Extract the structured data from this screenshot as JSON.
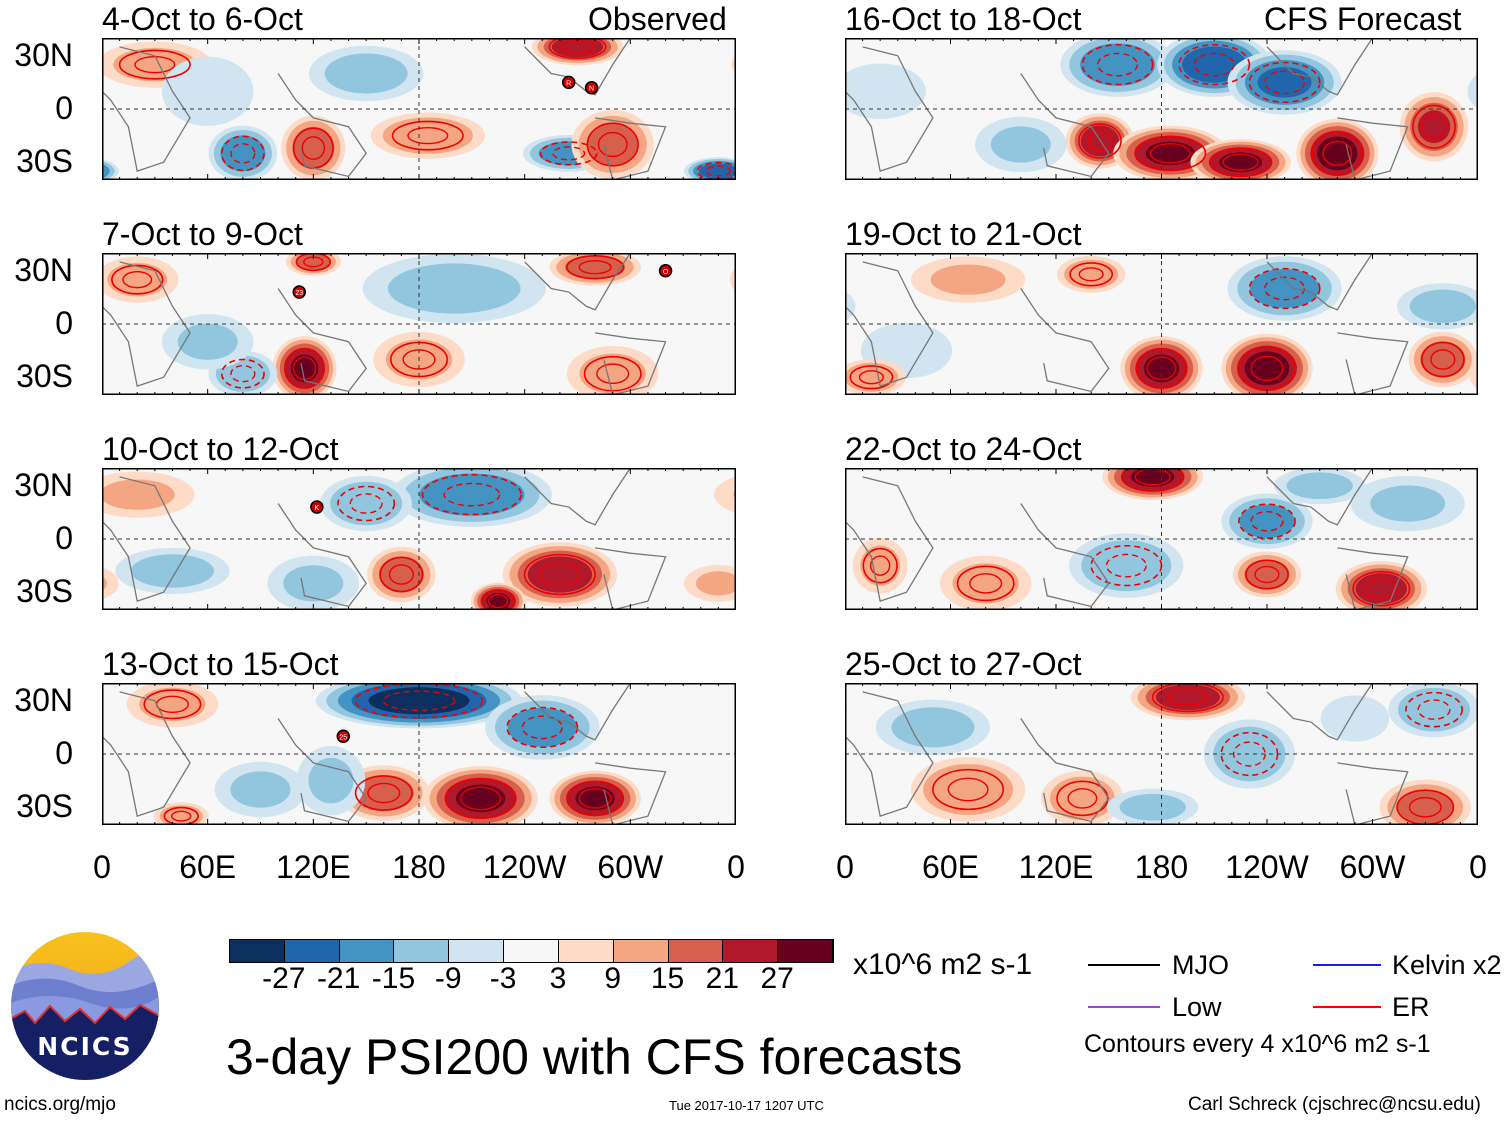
{
  "title": "3-day PSI200 with CFS forecasts",
  "left_column_label": "Observed",
  "right_column_label": "CFS Forecast",
  "lat_labels": [
    "30N",
    "0",
    "30S"
  ],
  "lon_labels": [
    "0",
    "60E",
    "120E",
    "180",
    "120W",
    "60W",
    "0"
  ],
  "panels": [
    {
      "label": "4-Oct to 6-Oct",
      "column": "left",
      "features": [
        [
          30,
          25,
          12,
          25,
          10
        ],
        [
          80,
          -25,
          -20,
          15,
          12
        ],
        [
          120,
          -22,
          20,
          14,
          14
        ],
        [
          150,
          20,
          -12,
          25,
          12
        ],
        [
          185,
          -15,
          15,
          25,
          10
        ],
        [
          265,
          -25,
          -20,
          20,
          8
        ],
        [
          290,
          -20,
          18,
          18,
          15
        ],
        [
          270,
          35,
          25,
          20,
          8
        ],
        [
          350,
          -35,
          -25,
          15,
          6
        ],
        [
          60,
          10,
          -8,
          20,
          15
        ]
      ],
      "storms": [
        [
          265,
          15,
          "R"
        ],
        [
          278,
          12,
          "N"
        ]
      ]
    },
    {
      "label": "7-Oct to 9-Oct",
      "column": "left",
      "features": [
        [
          115,
          -25,
          28,
          14,
          14
        ],
        [
          80,
          -28,
          -15,
          15,
          10
        ],
        [
          200,
          20,
          -12,
          40,
          15
        ],
        [
          280,
          32,
          20,
          20,
          8
        ],
        [
          180,
          -20,
          12,
          20,
          12
        ],
        [
          60,
          -10,
          -10,
          20,
          12
        ],
        [
          290,
          -28,
          12,
          20,
          12
        ],
        [
          120,
          35,
          18,
          12,
          6
        ],
        [
          20,
          25,
          12,
          18,
          10
        ]
      ],
      "storms": [
        [
          112,
          18,
          "23"
        ],
        [
          320,
          30,
          "O"
        ]
      ]
    },
    {
      "label": "10-Oct to 12-Oct",
      "column": "left",
      "features": [
        [
          210,
          25,
          -20,
          35,
          14
        ],
        [
          150,
          20,
          -15,
          20,
          12
        ],
        [
          260,
          -20,
          25,
          25,
          14
        ],
        [
          225,
          -35,
          28,
          12,
          8
        ],
        [
          170,
          -20,
          20,
          15,
          12
        ],
        [
          40,
          -18,
          -12,
          25,
          10
        ],
        [
          20,
          25,
          10,
          25,
          10
        ],
        [
          350,
          -25,
          10,
          15,
          8
        ],
        [
          120,
          -25,
          -10,
          20,
          12
        ]
      ],
      "storms": [
        [
          122,
          18,
          "K"
        ]
      ]
    },
    {
      "label": "13-Oct to 15-Oct",
      "column": "left",
      "features": [
        [
          180,
          30,
          -30,
          45,
          12
        ],
        [
          250,
          15,
          -18,
          25,
          14
        ],
        [
          215,
          -25,
          28,
          25,
          14
        ],
        [
          280,
          -25,
          28,
          20,
          12
        ],
        [
          160,
          -22,
          20,
          20,
          12
        ],
        [
          40,
          28,
          12,
          20,
          10
        ],
        [
          45,
          -35,
          15,
          12,
          6
        ],
        [
          90,
          -20,
          -10,
          20,
          12
        ],
        [
          130,
          -15,
          -10,
          15,
          15
        ]
      ],
      "storms": [
        [
          137,
          10,
          "25"
        ]
      ]
    },
    {
      "label": "16-Oct to 18-Oct",
      "column": "right",
      "features": [
        [
          155,
          25,
          -20,
          25,
          14
        ],
        [
          210,
          25,
          -25,
          25,
          14
        ],
        [
          250,
          15,
          -22,
          25,
          14
        ],
        [
          145,
          -18,
          25,
          15,
          12
        ],
        [
          185,
          -25,
          28,
          25,
          12
        ],
        [
          225,
          -30,
          28,
          22,
          10
        ],
        [
          280,
          -25,
          30,
          18,
          15
        ],
        [
          335,
          -10,
          22,
          15,
          15
        ],
        [
          20,
          10,
          -8,
          20,
          12
        ],
        [
          100,
          -20,
          -10,
          20,
          12
        ]
      ],
      "storms": []
    },
    {
      "label": "19-Oct to 21-Oct",
      "column": "right",
      "features": [
        [
          180,
          -25,
          28,
          18,
          14
        ],
        [
          240,
          -25,
          30,
          20,
          15
        ],
        [
          250,
          20,
          -18,
          25,
          14
        ],
        [
          70,
          25,
          10,
          25,
          10
        ],
        [
          140,
          28,
          15,
          15,
          8
        ],
        [
          340,
          10,
          -12,
          20,
          10
        ],
        [
          340,
          -20,
          20,
          15,
          12
        ],
        [
          35,
          -15,
          -9,
          20,
          12
        ],
        [
          15,
          -30,
          15,
          15,
          8
        ]
      ],
      "storms": []
    },
    {
      "label": "22-Oct to 24-Oct",
      "column": "right",
      "features": [
        [
          175,
          35,
          28,
          22,
          10
        ],
        [
          240,
          10,
          -18,
          20,
          12
        ],
        [
          160,
          -15,
          -15,
          25,
          14
        ],
        [
          80,
          -25,
          12,
          20,
          12
        ],
        [
          240,
          -20,
          20,
          15,
          10
        ],
        [
          305,
          -28,
          25,
          20,
          12
        ],
        [
          320,
          20,
          -10,
          25,
          12
        ],
        [
          20,
          -15,
          12,
          12,
          12
        ],
        [
          270,
          30,
          -12,
          20,
          8
        ]
      ],
      "storms": []
    },
    {
      "label": "25-Oct to 27-Oct",
      "column": "right",
      "features": [
        [
          195,
          32,
          25,
          25,
          10
        ],
        [
          70,
          -20,
          15,
          25,
          14
        ],
        [
          135,
          -25,
          15,
          18,
          12
        ],
        [
          230,
          0,
          -15,
          20,
          15
        ],
        [
          335,
          25,
          -15,
          20,
          12
        ],
        [
          330,
          -30,
          18,
          20,
          12
        ],
        [
          50,
          15,
          -12,
          25,
          12
        ],
        [
          175,
          -30,
          -12,
          20,
          8
        ],
        [
          290,
          20,
          -8,
          15,
          10
        ]
      ],
      "storms": []
    }
  ],
  "colorbar": {
    "colors": [
      "#0b2f5e",
      "#2166ac",
      "#4393c3",
      "#92c5de",
      "#d1e5f0",
      "#f7f7f7",
      "#fddbc7",
      "#f4a582",
      "#d6604d",
      "#b2182b",
      "#67001f"
    ],
    "ticks": [
      "-27",
      "-21",
      "-15",
      "-9",
      "-3",
      "3",
      "9",
      "15",
      "21",
      "27"
    ],
    "units": "x10^6 m2 s-1"
  },
  "legend": {
    "items": [
      {
        "label": "MJO",
        "color": "#000000"
      },
      {
        "label": "Kelvin x2",
        "color": "#1a1aff"
      },
      {
        "label": "Low",
        "color": "#a040e0"
      },
      {
        "label": "ER",
        "color": "#ff0000"
      }
    ],
    "contour_note": "Contours every 4 x10^6 m2 s-1"
  },
  "logo_text": "NCICS",
  "footer": {
    "url": "ncics.org/mjo",
    "timestamp": "Tue 2017-10-17 1207 UTC",
    "author": "Carl Schreck (cjschrec@ncsu.edu)"
  }
}
